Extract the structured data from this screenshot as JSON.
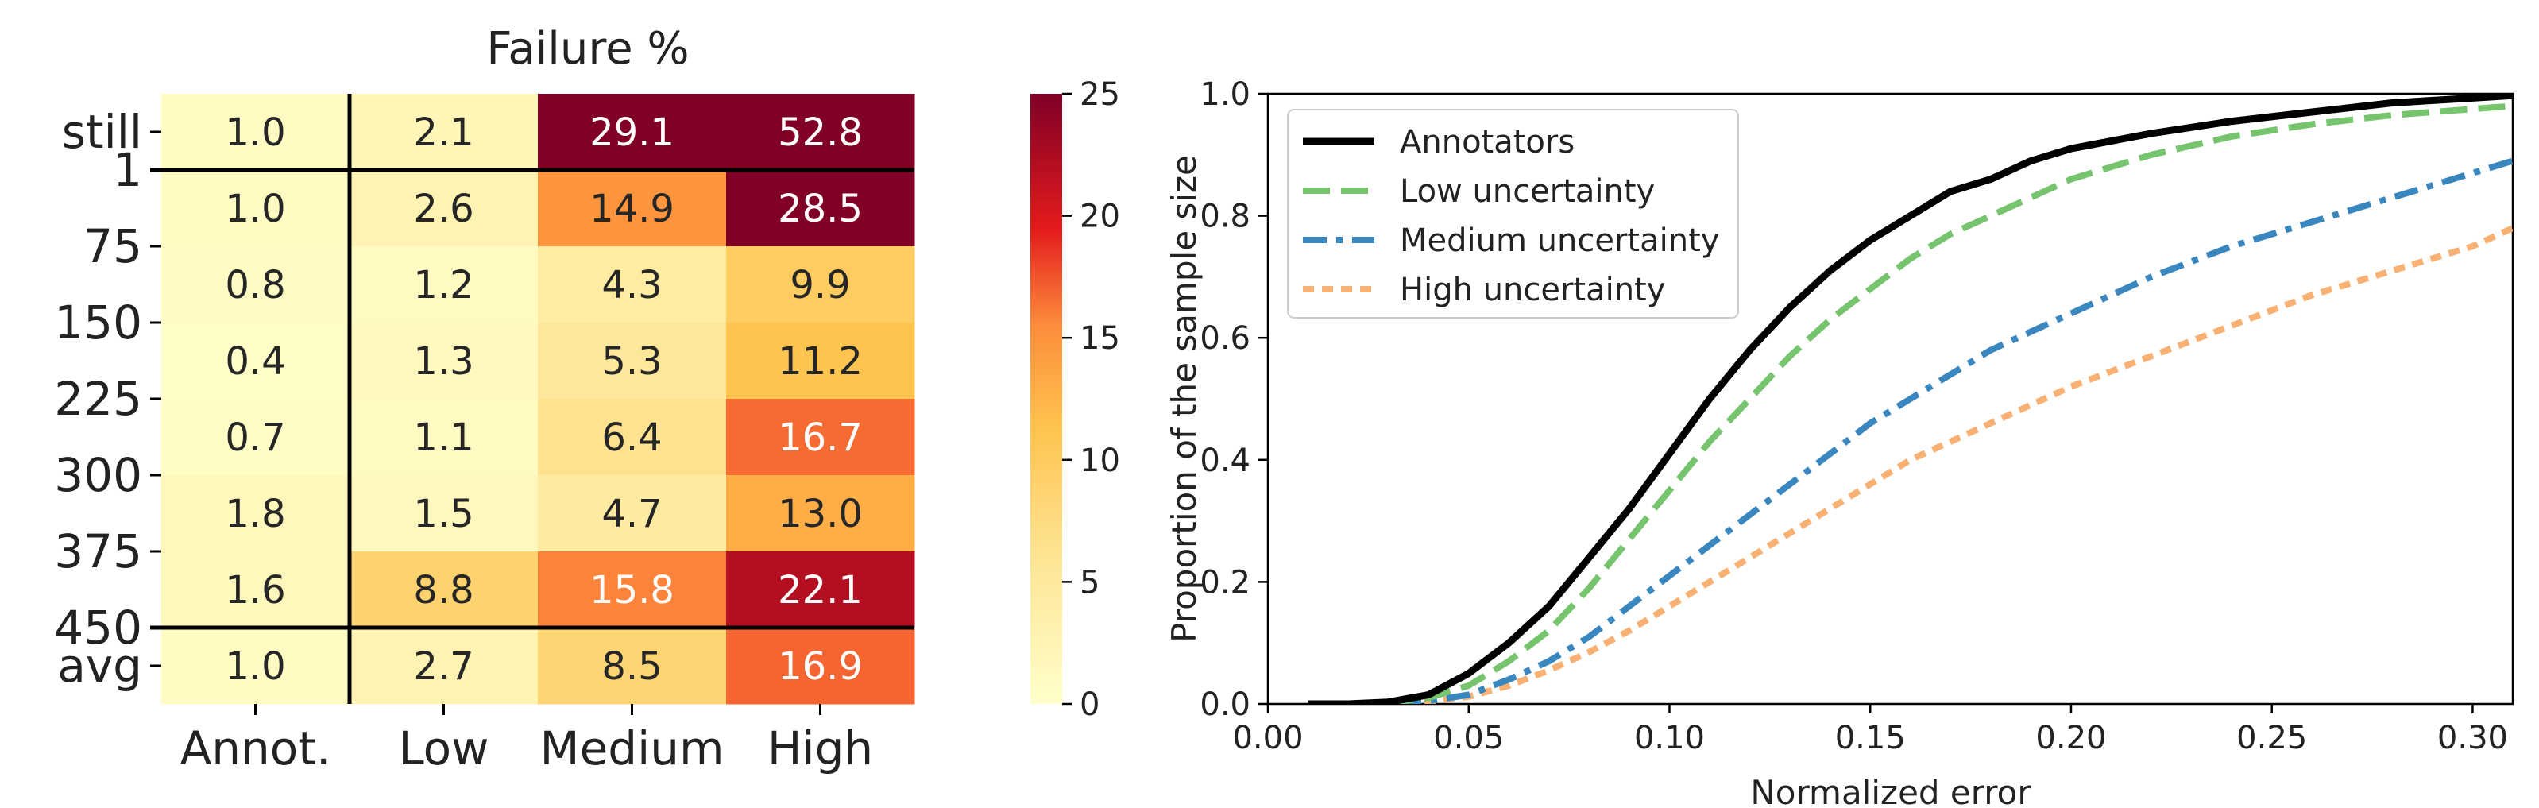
{
  "chart_data": [
    {
      "type": "heatmap",
      "title": "Failure %",
      "columns": [
        "Annot.",
        "Low",
        "Medium",
        "High"
      ],
      "rows": [
        "1",
        "75",
        "150",
        "225",
        "300",
        "375",
        "450"
      ],
      "row_tick_labels": [
        "still",
        "1",
        "75",
        "150",
        "225",
        "300",
        "375",
        "450",
        "avg"
      ],
      "row_labels": [
        "still",
        "1–75",
        "75–150",
        "150–225",
        "225–300",
        "300–375",
        "375–450",
        "avg"
      ],
      "values": [
        [
          1.0,
          2.1,
          29.1,
          52.8
        ],
        [
          1.0,
          2.6,
          14.9,
          28.5
        ],
        [
          0.8,
          1.2,
          4.3,
          9.9
        ],
        [
          0.4,
          1.3,
          5.3,
          11.2
        ],
        [
          0.7,
          1.1,
          6.4,
          16.7
        ],
        [
          1.8,
          1.5,
          4.7,
          13.0
        ],
        [
          1.6,
          8.8,
          15.8,
          22.1
        ],
        [
          1.0,
          2.7,
          8.5,
          16.9
        ]
      ],
      "colorbar": {
        "min": 0,
        "max": 25,
        "ticks": [
          "0",
          "5",
          "10",
          "15",
          "20",
          "25"
        ]
      }
    },
    {
      "type": "line",
      "xlabel": "Normalized error",
      "ylabel": "Proportion of the sample size",
      "xlim": [
        0.0,
        0.31
      ],
      "ylim": [
        0.0,
        1.0
      ],
      "x_ticks": [
        "0.00",
        "0.05",
        "0.10",
        "0.15",
        "0.20",
        "0.25",
        "0.30"
      ],
      "y_ticks": [
        "0.0",
        "0.2",
        "0.4",
        "0.6",
        "0.8",
        "1.0"
      ],
      "legend_location": "top-left",
      "series": [
        {
          "name": "Annotators",
          "color": "#000000",
          "style": "solid",
          "x": [
            0.01,
            0.02,
            0.03,
            0.04,
            0.05,
            0.06,
            0.07,
            0.08,
            0.09,
            0.1,
            0.11,
            0.12,
            0.13,
            0.14,
            0.15,
            0.16,
            0.17,
            0.18,
            0.19,
            0.2,
            0.22,
            0.24,
            0.26,
            0.28,
            0.3,
            0.31
          ],
          "y": [
            0.0,
            0.0,
            0.003,
            0.015,
            0.05,
            0.1,
            0.16,
            0.24,
            0.32,
            0.41,
            0.5,
            0.58,
            0.65,
            0.71,
            0.76,
            0.8,
            0.84,
            0.86,
            0.89,
            0.91,
            0.935,
            0.955,
            0.97,
            0.985,
            0.993,
            0.997
          ]
        },
        {
          "name": "Low uncertainty",
          "color": "#77c46f",
          "style": "dashed",
          "x": [
            0.02,
            0.03,
            0.04,
            0.05,
            0.06,
            0.07,
            0.08,
            0.09,
            0.1,
            0.11,
            0.12,
            0.13,
            0.14,
            0.15,
            0.16,
            0.17,
            0.18,
            0.19,
            0.2,
            0.22,
            0.24,
            0.26,
            0.28,
            0.3,
            0.31
          ],
          "y": [
            0.0,
            0.002,
            0.01,
            0.03,
            0.07,
            0.12,
            0.19,
            0.27,
            0.35,
            0.43,
            0.5,
            0.57,
            0.63,
            0.68,
            0.73,
            0.77,
            0.8,
            0.83,
            0.86,
            0.9,
            0.93,
            0.95,
            0.965,
            0.975,
            0.98
          ]
        },
        {
          "name": "Medium uncertainty",
          "color": "#3a87c0",
          "style": "dashdot",
          "x": [
            0.02,
            0.03,
            0.04,
            0.05,
            0.06,
            0.07,
            0.08,
            0.09,
            0.1,
            0.11,
            0.12,
            0.13,
            0.14,
            0.15,
            0.16,
            0.17,
            0.18,
            0.19,
            0.2,
            0.22,
            0.24,
            0.26,
            0.28,
            0.3,
            0.31
          ],
          "y": [
            0.0,
            0.001,
            0.005,
            0.015,
            0.04,
            0.07,
            0.11,
            0.16,
            0.21,
            0.26,
            0.31,
            0.36,
            0.41,
            0.46,
            0.5,
            0.54,
            0.58,
            0.61,
            0.64,
            0.7,
            0.75,
            0.79,
            0.83,
            0.87,
            0.89
          ]
        },
        {
          "name": "High uncertainty",
          "color": "#f8b073",
          "style": "dotted",
          "x": [
            0.02,
            0.03,
            0.04,
            0.05,
            0.06,
            0.07,
            0.08,
            0.09,
            0.1,
            0.11,
            0.12,
            0.13,
            0.14,
            0.15,
            0.16,
            0.17,
            0.18,
            0.19,
            0.2,
            0.22,
            0.24,
            0.26,
            0.28,
            0.3,
            0.31
          ],
          "y": [
            0.0,
            0.001,
            0.004,
            0.012,
            0.03,
            0.055,
            0.085,
            0.12,
            0.16,
            0.2,
            0.24,
            0.28,
            0.32,
            0.36,
            0.4,
            0.43,
            0.46,
            0.49,
            0.52,
            0.57,
            0.62,
            0.67,
            0.71,
            0.75,
            0.78
          ]
        }
      ]
    }
  ]
}
